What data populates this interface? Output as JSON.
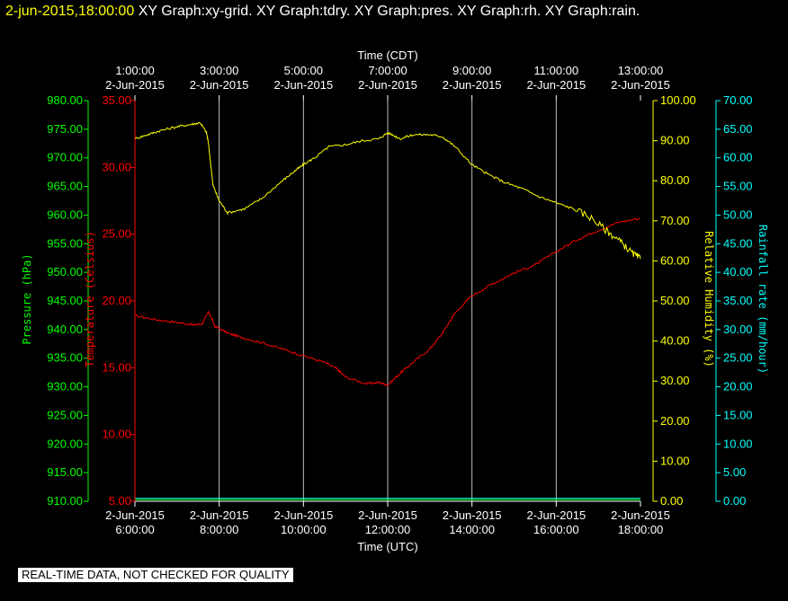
{
  "header": {
    "timestamp": "2-jun-2015,18:00:00",
    "graphs": "XY Graph:xy-grid.  XY Graph:tdry.  XY Graph:pres.  XY Graph:rh.  XY Graph:rain."
  },
  "disclaimer": "REAL-TIME DATA, NOT CHECKED FOR QUALITY",
  "colors": {
    "background": "#000000",
    "grid": "#ffffff",
    "pressure": "#00ff00",
    "temperature": "#ff0000",
    "humidity": "#ffff00",
    "rainfall": "#00ffff"
  },
  "chart_data": {
    "type": "line",
    "title": "",
    "top_axis": {
      "label": "Time (CDT)",
      "ticks": [
        {
          "time": "1:00:00",
          "date": "2-Jun-2015"
        },
        {
          "time": "3:00:00",
          "date": "2-Jun-2015"
        },
        {
          "time": "5:00:00",
          "date": "2-Jun-2015"
        },
        {
          "time": "7:00:00",
          "date": "2-Jun-2015"
        },
        {
          "time": "9:00:00",
          "date": "2-Jun-2015"
        },
        {
          "time": "11:00:00",
          "date": "2-Jun-2015"
        },
        {
          "time": "13:00:00",
          "date": "2-Jun-2015"
        }
      ]
    },
    "bottom_axis": {
      "label": "Time (UTC)",
      "ticks": [
        {
          "date": "2-Jun-2015",
          "time": "6:00:00"
        },
        {
          "date": "2-Jun-2015",
          "time": "8:00:00"
        },
        {
          "date": "2-Jun-2015",
          "time": "10:00:00"
        },
        {
          "date": "2-Jun-2015",
          "time": "12:00:00"
        },
        {
          "date": "2-Jun-2015",
          "time": "14:00:00"
        },
        {
          "date": "2-Jun-2015",
          "time": "16:00:00"
        },
        {
          "date": "2-Jun-2015",
          "time": "18:00:00"
        }
      ]
    },
    "x_range_hours_utc": [
      6,
      18
    ],
    "grid": true,
    "axes": {
      "pressure": {
        "label": "Pressure (hPa)",
        "range": [
          910,
          980
        ],
        "ticks": [
          "910.00",
          "915.00",
          "920.00",
          "925.00",
          "930.00",
          "935.00",
          "940.00",
          "945.00",
          "950.00",
          "955.00",
          "960.00",
          "965.00",
          "970.00",
          "975.00",
          "980.00"
        ]
      },
      "temperature": {
        "label": "Temperature (Celsius)",
        "range": [
          5,
          35
        ],
        "ticks": [
          "5.00",
          "10.00",
          "15.00",
          "20.00",
          "25.00",
          "30.00",
          "35.00"
        ]
      },
      "humidity": {
        "label": "Relative Humidity (%)",
        "range": [
          0,
          100
        ],
        "ticks": [
          "0.00",
          "10.00",
          "20.00",
          "30.00",
          "40.00",
          "50.00",
          "60.00",
          "70.00",
          "80.00",
          "90.00",
          "100.00"
        ]
      },
      "rainfall": {
        "label": "Rainfall rate (mm/hour)",
        "range": [
          0,
          70
        ],
        "ticks": [
          "0.00",
          "5.00",
          "10.00",
          "15.00",
          "20.00",
          "25.00",
          "30.00",
          "35.00",
          "40.00",
          "45.00",
          "50.00",
          "55.00",
          "60.00",
          "65.00",
          "70.00"
        ]
      }
    },
    "series": [
      {
        "axis": "temperature",
        "color": "#ff0000",
        "x": [
          6.0,
          6.5,
          7.0,
          7.4,
          7.6,
          7.75,
          7.9,
          8.2,
          8.5,
          9.0,
          9.5,
          10.0,
          10.5,
          10.8,
          11.0,
          11.5,
          11.8,
          12.0,
          12.3,
          12.6,
          13.0,
          13.3,
          13.6,
          14.0,
          14.5,
          15.0,
          15.5,
          16.0,
          16.5,
          17.0,
          17.5,
          18.0
        ],
        "y": [
          18.9,
          18.6,
          18.4,
          18.2,
          18.3,
          19.2,
          18.1,
          17.6,
          17.3,
          16.9,
          16.4,
          15.9,
          15.4,
          14.9,
          14.3,
          13.8,
          13.9,
          13.7,
          14.6,
          15.4,
          16.4,
          17.6,
          19.1,
          20.4,
          21.3,
          22.1,
          22.7,
          23.7,
          24.6,
          25.3,
          25.9,
          26.2
        ]
      },
      {
        "axis": "humidity",
        "color": "#ffff00",
        "x": [
          6.0,
          6.3,
          6.6,
          7.0,
          7.3,
          7.55,
          7.7,
          7.75,
          7.85,
          8.0,
          8.2,
          8.6,
          9.0,
          9.5,
          9.8,
          10.0,
          10.3,
          10.6,
          11.0,
          11.4,
          11.8,
          12.0,
          12.3,
          12.6,
          13.0,
          13.3,
          13.6,
          14.0,
          14.4,
          14.8,
          15.2,
          15.6,
          16.0,
          16.4,
          16.8,
          17.2,
          17.5,
          17.8,
          18.0
        ],
        "y": [
          90.5,
          91.5,
          92.5,
          93.5,
          94.0,
          94.5,
          92.0,
          89.0,
          79.0,
          75.0,
          72.0,
          73.0,
          75.5,
          80.0,
          82.5,
          84.0,
          86.0,
          88.5,
          89.0,
          90.0,
          90.5,
          92.0,
          90.5,
          91.5,
          91.5,
          91.0,
          88.5,
          84.0,
          81.5,
          79.5,
          78.0,
          76.0,
          74.5,
          73.0,
          71.0,
          67.5,
          65.0,
          62.0,
          60.5
        ]
      },
      {
        "axis": "pressure",
        "color": "#00ff00",
        "x": [
          6.0,
          18.0
        ],
        "y": [
          910.3,
          910.3
        ]
      },
      {
        "axis": "rainfall",
        "color": "#00ffff",
        "x": [
          6.0,
          18.0
        ],
        "y": [
          0.5,
          0.5
        ]
      }
    ]
  }
}
